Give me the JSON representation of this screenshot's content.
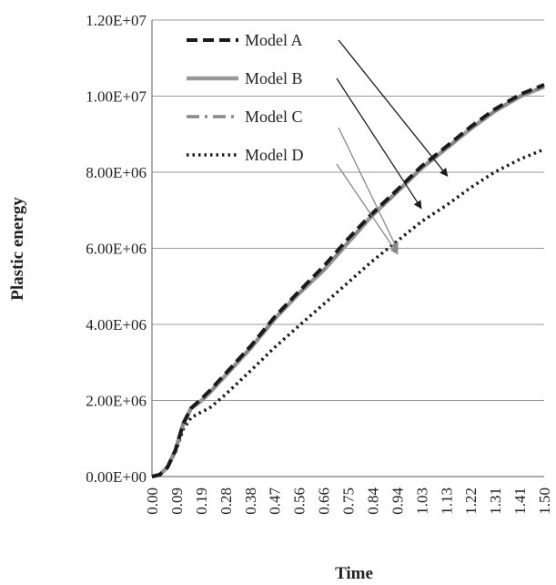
{
  "chart_data": {
    "type": "line",
    "title": "",
    "xlabel": "Time",
    "ylabel": "Plastic energy",
    "ylim": [
      0,
      12000000
    ],
    "grid": "horizontal",
    "legend_position": "top-left",
    "x_ticks": [
      "0.00",
      "0.09",
      "0.19",
      "0.28",
      "0.38",
      "0.47",
      "0.56",
      "0.66",
      "0.75",
      "0.84",
      "0.94",
      "1.03",
      "1.13",
      "1.22",
      "1.31",
      "1.41",
      "1.50"
    ],
    "y_ticks": [
      "0.00E+00",
      "2.00E+06",
      "4.00E+06",
      "6.00E+06",
      "8.00E+06",
      "1.00E+07",
      "1.20E+07"
    ],
    "y_tick_values": [
      0,
      2000000,
      4000000,
      6000000,
      8000000,
      10000000,
      12000000
    ],
    "x_range": [
      0,
      1.5
    ],
    "series": [
      {
        "name": "Model A",
        "color": "#1a1a1a",
        "style": "dashed",
        "x": [
          0,
          0.03,
          0.06,
          0.09,
          0.12,
          0.15,
          0.19,
          0.22,
          0.28,
          0.38,
          0.47,
          0.56,
          0.66,
          0.75,
          0.84,
          0.94,
          1.03,
          1.13,
          1.22,
          1.31,
          1.41,
          1.5
        ],
        "y": [
          0,
          50000,
          250000,
          700000,
          1400000,
          1800000,
          2050000,
          2250000,
          2700000,
          3450000,
          4200000,
          4850000,
          5550000,
          6250000,
          6900000,
          7550000,
          8150000,
          8700000,
          9200000,
          9650000,
          10050000,
          10300000
        ]
      },
      {
        "name": "Model B",
        "color": "#999999",
        "style": "solid",
        "x": [
          0,
          0.03,
          0.06,
          0.09,
          0.12,
          0.15,
          0.19,
          0.22,
          0.28,
          0.38,
          0.47,
          0.56,
          0.66,
          0.75,
          0.84,
          0.94,
          1.03,
          1.13,
          1.22,
          1.31,
          1.41,
          1.5
        ],
        "y": [
          0,
          50000,
          250000,
          700000,
          1400000,
          1800000,
          2000000,
          2200000,
          2650000,
          3400000,
          4150000,
          4800000,
          5450000,
          6150000,
          6850000,
          7500000,
          8100000,
          8650000,
          9150000,
          9600000,
          10000000,
          10250000
        ]
      },
      {
        "name": "Model C",
        "color": "#888888",
        "style": "dash-dot",
        "x": [
          0,
          0.03,
          0.06,
          0.09,
          0.12,
          0.15,
          0.19,
          0.22,
          0.28,
          0.38,
          0.47,
          0.56,
          0.66,
          0.75,
          0.84,
          0.94,
          1.03,
          1.13,
          1.22,
          1.31,
          1.41,
          1.5
        ],
        "y": [
          0,
          50000,
          250000,
          700000,
          1400000,
          1800000,
          2000000,
          2200000,
          2650000,
          3400000,
          4150000,
          4800000,
          5450000,
          6150000,
          6850000,
          7500000,
          8100000,
          8650000,
          9150000,
          9600000,
          10000000,
          10250000
        ]
      },
      {
        "name": "Model D",
        "color": "#1a1a1a",
        "style": "dotted",
        "x": [
          0,
          0.03,
          0.06,
          0.09,
          0.12,
          0.15,
          0.19,
          0.22,
          0.28,
          0.38,
          0.47,
          0.56,
          0.66,
          0.75,
          0.84,
          0.94,
          1.03,
          1.13,
          1.22,
          1.31,
          1.41,
          1.5
        ],
        "y": [
          0,
          50000,
          250000,
          650000,
          1250000,
          1550000,
          1700000,
          1800000,
          2150000,
          2800000,
          3400000,
          3950000,
          4550000,
          5100000,
          5650000,
          6200000,
          6700000,
          7150000,
          7600000,
          8000000,
          8350000,
          8600000
        ]
      }
    ],
    "annotations": [
      {
        "series": "Model A",
        "x": 1.13,
        "y": 7900000
      },
      {
        "series": "Model B",
        "x": 1.03,
        "y": 7050000
      },
      {
        "series": "Model C",
        "x": 0.94,
        "y": 5950000
      },
      {
        "series": "Model D",
        "x": 0.94,
        "y": 5850000
      }
    ]
  }
}
